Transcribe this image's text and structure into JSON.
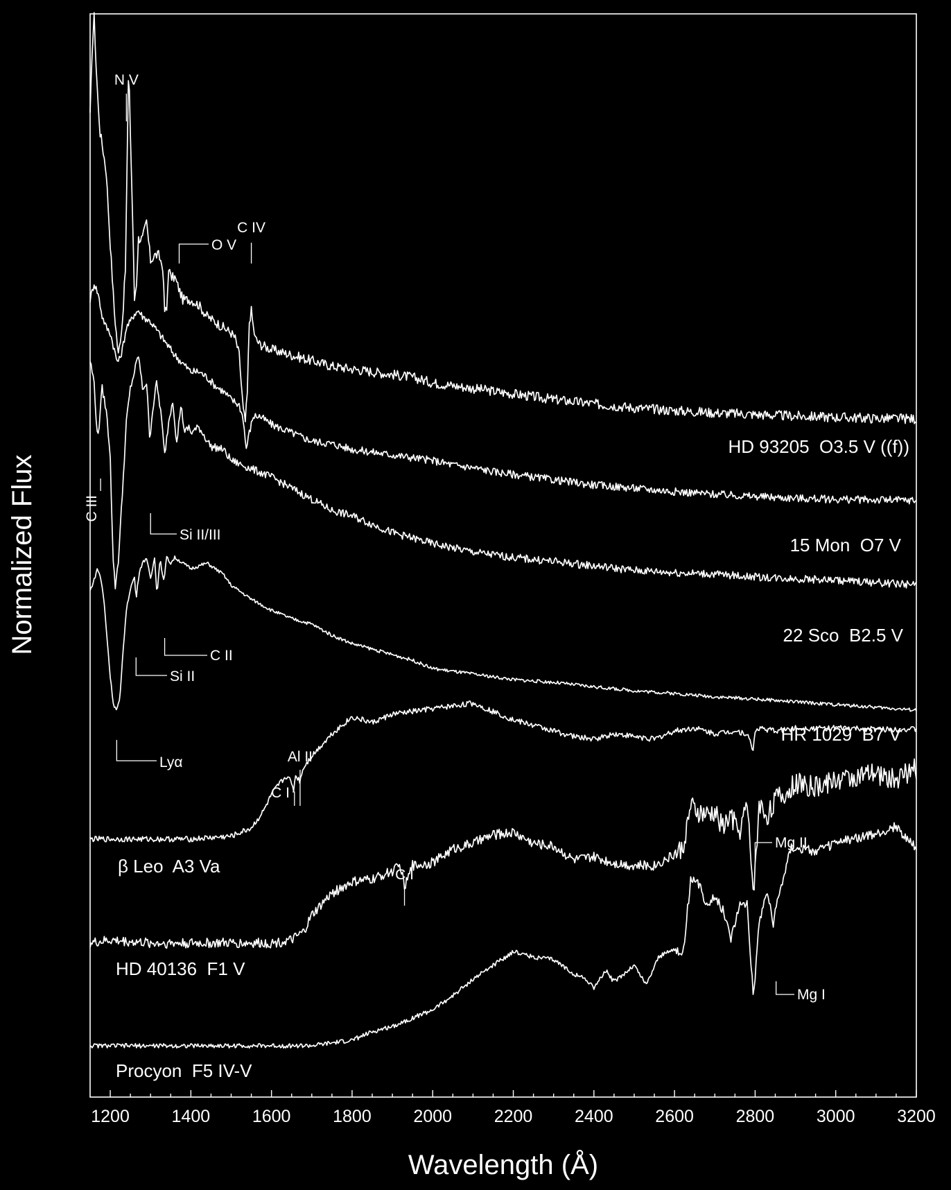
{
  "chart_data": {
    "type": "line",
    "xlabel": "Wavelength (Å)",
    "ylabel": "Normalized Flux",
    "xlim": [
      1150,
      3200
    ],
    "xticks": [
      1200,
      1400,
      1600,
      1800,
      2000,
      2200,
      2400,
      2600,
      2800,
      3000,
      3200
    ],
    "grid": false,
    "colors": {
      "background": "#000000",
      "foreground": "#ffffff"
    },
    "series": [
      {
        "name": "HD 93205  O3.5 V ((f))",
        "x": [
          1150,
          1155,
          1160,
          1165,
          1170,
          1175,
          1180,
          1190,
          1200,
          1210,
          1220,
          1230,
          1238,
          1242,
          1246,
          1250,
          1256,
          1260,
          1265,
          1270,
          1280,
          1290,
          1300,
          1310,
          1320,
          1330,
          1335,
          1340,
          1345,
          1350,
          1360,
          1370,
          1380,
          1400,
          1420,
          1440,
          1460,
          1480,
          1500,
          1510,
          1520,
          1530,
          1535,
          1540,
          1545,
          1550,
          1555,
          1560,
          1570,
          1600,
          1650,
          1700,
          1750,
          1800,
          1850,
          1900,
          1950,
          2000,
          2050,
          2100,
          2150,
          2200,
          2250,
          2300,
          2400,
          2500,
          2600,
          2700,
          2800,
          2900,
          3000,
          3100,
          3200
        ],
        "y": [
          12.9,
          14.1,
          14.7,
          13.8,
          13.1,
          12.6,
          12.4,
          11.9,
          10.6,
          9.4,
          8.6,
          9.2,
          10.2,
          12.2,
          13.9,
          12.6,
          10.9,
          9.6,
          9.9,
          10.7,
          10.7,
          11.0,
          10.3,
          10.4,
          10.4,
          10.2,
          9.4,
          9.4,
          10.2,
          10.0,
          10.0,
          9.8,
          9.6,
          9.6,
          9.5,
          9.3,
          9.2,
          9.1,
          9.0,
          8.9,
          8.6,
          7.6,
          7.4,
          7.9,
          9.2,
          9.4,
          9.1,
          8.9,
          8.8,
          8.7,
          8.6,
          8.5,
          8.4,
          8.35,
          8.3,
          8.25,
          8.2,
          8.1,
          8.05,
          8.0,
          7.95,
          7.9,
          7.85,
          7.8,
          7.72,
          7.65,
          7.6,
          7.56,
          7.53,
          7.5,
          7.48,
          7.46,
          7.45
        ],
        "label": "HD 93205  O3.5 V ((f))"
      },
      {
        "name": "15 Mon  O7 V",
        "x": [
          1150,
          1160,
          1170,
          1180,
          1190,
          1200,
          1210,
          1216,
          1222,
          1230,
          1240,
          1250,
          1260,
          1270,
          1280,
          1300,
          1320,
          1340,
          1360,
          1380,
          1400,
          1420,
          1440,
          1460,
          1480,
          1500,
          1520,
          1530,
          1537,
          1545,
          1555,
          1570,
          1600,
          1650,
          1700,
          1750,
          1800,
          1850,
          1900,
          1950,
          2000,
          2050,
          2100,
          2150,
          2200,
          2300,
          2400,
          2500,
          2600,
          2700,
          2800,
          2900,
          3000,
          3100,
          3200
        ],
        "y": [
          9.6,
          9.9,
          9.7,
          9.3,
          9.1,
          9.0,
          8.7,
          8.5,
          8.5,
          8.7,
          9.1,
          9.2,
          9.35,
          9.4,
          9.3,
          9.2,
          9.0,
          8.8,
          8.6,
          8.45,
          8.3,
          8.3,
          8.2,
          8.05,
          7.95,
          7.8,
          7.7,
          7.45,
          6.9,
          7.2,
          7.5,
          7.5,
          7.35,
          7.2,
          7.05,
          7.0,
          6.9,
          6.85,
          6.8,
          6.75,
          6.7,
          6.62,
          6.57,
          6.5,
          6.45,
          6.35,
          6.26,
          6.2,
          6.14,
          6.09,
          6.05,
          6.02,
          6.0,
          5.99,
          5.98
        ],
        "label": "15 Mon  O7 V"
      },
      {
        "name": "22 Sco  B2.5 V",
        "x": [
          1150,
          1160,
          1168,
          1172,
          1176,
          1180,
          1190,
          1200,
          1206,
          1212,
          1220,
          1230,
          1240,
          1250,
          1260,
          1270,
          1280,
          1290,
          1298,
          1305,
          1315,
          1325,
          1335,
          1345,
          1355,
          1365,
          1375,
          1385,
          1395,
          1400,
          1420,
          1450,
          1480,
          1500,
          1550,
          1600,
          1650,
          1700,
          1750,
          1800,
          1850,
          1900,
          1950,
          2000,
          2100,
          2200,
          2300,
          2400,
          2500,
          2600,
          2700,
          2800,
          2900,
          3000,
          3100,
          3200
        ],
        "y": [
          8.5,
          8.1,
          7.1,
          7.3,
          7.7,
          8.0,
          7.6,
          6.8,
          5.1,
          4.4,
          4.9,
          6.1,
          7.4,
          8.0,
          8.3,
          8.6,
          8.0,
          8.1,
          7.1,
          7.6,
          8.1,
          7.6,
          6.8,
          7.4,
          7.8,
          7.0,
          7.7,
          7.2,
          7.3,
          7.2,
          7.3,
          6.95,
          6.9,
          6.7,
          6.55,
          6.4,
          6.2,
          6.0,
          5.8,
          5.7,
          5.55,
          5.4,
          5.3,
          5.2,
          5.05,
          4.95,
          4.88,
          4.8,
          4.72,
          4.68,
          4.65,
          4.6,
          4.57,
          4.54,
          4.5,
          4.46
        ],
        "label": "22 Sco  B2.5 V"
      },
      {
        "name": "HR 1029  B7 V",
        "x": [
          1150,
          1160,
          1168,
          1176,
          1184,
          1192,
          1200,
          1208,
          1216,
          1224,
          1232,
          1240,
          1250,
          1260,
          1264,
          1272,
          1280,
          1290,
          1300,
          1310,
          1316,
          1324,
          1332,
          1340,
          1350,
          1360,
          1380,
          1400,
          1420,
          1440,
          1460,
          1480,
          1500,
          1550,
          1600,
          1650,
          1700,
          1750,
          1800,
          1850,
          1900,
          1950,
          2000,
          2100,
          2200,
          2300,
          2400,
          2500,
          2600,
          2700,
          2800,
          2900,
          3000,
          3100,
          3200
        ],
        "y": [
          4.35,
          4.55,
          4.75,
          4.6,
          4.2,
          3.5,
          2.8,
          2.3,
          2.2,
          2.4,
          3.3,
          4.0,
          4.4,
          4.6,
          4.2,
          4.7,
          4.85,
          4.95,
          4.55,
          4.95,
          4.3,
          4.95,
          4.5,
          4.95,
          4.85,
          4.95,
          4.85,
          4.75,
          4.8,
          4.85,
          4.75,
          4.65,
          4.45,
          4.2,
          4.0,
          3.85,
          3.75,
          3.55,
          3.4,
          3.3,
          3.2,
          3.1,
          2.95,
          2.85,
          2.75,
          2.7,
          2.62,
          2.55,
          2.5,
          2.44,
          2.4,
          2.35,
          2.3,
          2.25,
          2.2
        ],
        "label": "HR 1029  B7 V"
      },
      {
        "name": "β Leo  A3 Va",
        "x": [
          1150,
          1200,
          1300,
          1400,
          1500,
          1550,
          1580,
          1600,
          1620,
          1640,
          1655,
          1660,
          1670,
          1680,
          1700,
          1750,
          1800,
          1850,
          1900,
          1950,
          2000,
          2050,
          2100,
          2150,
          2200,
          2250,
          2300,
          2350,
          2400,
          2450,
          2500,
          2550,
          2600,
          2650,
          2700,
          2750,
          2780,
          2795,
          2800,
          2810,
          2850,
          2900,
          3000,
          3100,
          3200
        ],
        "y": [
          0.0,
          0.0,
          0.0,
          0.0,
          0.05,
          0.2,
          0.5,
          0.8,
          1.0,
          1.15,
          0.9,
          1.15,
          1.05,
          1.3,
          1.5,
          1.9,
          2.2,
          2.1,
          2.25,
          2.3,
          2.35,
          2.4,
          2.45,
          2.3,
          2.15,
          2.05,
          1.95,
          1.85,
          1.8,
          1.9,
          1.85,
          1.8,
          1.95,
          2.0,
          1.9,
          1.95,
          1.9,
          1.6,
          1.95,
          2.0,
          1.95,
          2.0,
          2.0,
          1.98,
          1.98
        ],
        "label": "β Leo  A3 Va"
      },
      {
        "name": "HD 40136  F1 V",
        "x": [
          1150,
          1200,
          1300,
          1400,
          1500,
          1550,
          1600,
          1650,
          1680,
          1700,
          1750,
          1800,
          1850,
          1900,
          1920,
          1930,
          1950,
          2000,
          2050,
          2100,
          2150,
          2200,
          2250,
          2300,
          2350,
          2400,
          2450,
          2500,
          2550,
          2600,
          2620,
          2640,
          2660,
          2680,
          2700,
          2720,
          2740,
          2760,
          2780,
          2795,
          2800,
          2810,
          2830,
          2850,
          2880,
          2900,
          2950,
          3000,
          3050,
          3100,
          3150,
          3200
        ],
        "y": [
          0.0,
          0.05,
          0.0,
          0.0,
          0.0,
          0.0,
          0.0,
          0.05,
          0.2,
          0.5,
          0.9,
          1.1,
          1.15,
          1.3,
          1.4,
          1.0,
          1.4,
          1.45,
          1.7,
          1.8,
          1.95,
          2.0,
          1.8,
          1.75,
          1.5,
          1.55,
          1.45,
          1.4,
          1.4,
          1.6,
          1.7,
          2.45,
          2.35,
          2.3,
          2.35,
          2.1,
          2.3,
          2.0,
          2.5,
          1.0,
          1.3,
          2.5,
          2.3,
          2.6,
          2.7,
          2.9,
          2.8,
          2.95,
          3.0,
          3.05,
          2.95,
          3.15
        ],
        "label": "HD 40136  F1 V"
      },
      {
        "name": "Procyon  F5 IV-V",
        "x": [
          1150,
          1300,
          1500,
          1700,
          1750,
          1800,
          1850,
          1900,
          1950,
          2000,
          2050,
          2100,
          2150,
          2200,
          2250,
          2300,
          2350,
          2380,
          2400,
          2430,
          2450,
          2500,
          2530,
          2560,
          2600,
          2620,
          2640,
          2660,
          2680,
          2700,
          2720,
          2740,
          2760,
          2780,
          2795,
          2800,
          2810,
          2830,
          2845,
          2855,
          2870,
          2890,
          2910,
          2950,
          3000,
          3050,
          3100,
          3150,
          3200
        ],
        "y": [
          0.0,
          0.0,
          0.0,
          0.0,
          0.05,
          0.1,
          0.25,
          0.35,
          0.5,
          0.65,
          0.9,
          1.2,
          1.45,
          1.7,
          1.6,
          1.55,
          1.3,
          1.2,
          1.05,
          1.35,
          1.15,
          1.45,
          1.1,
          1.6,
          1.75,
          1.6,
          3.0,
          2.9,
          2.55,
          2.7,
          2.45,
          1.95,
          2.5,
          2.6,
          0.95,
          1.2,
          2.25,
          2.8,
          2.2,
          2.6,
          3.05,
          3.6,
          3.55,
          3.5,
          3.65,
          3.75,
          3.8,
          3.95,
          3.55
        ],
        "label": "Procyon  F5 IV-V"
      }
    ],
    "annotations": [
      {
        "text": "N V",
        "series": 0,
        "x": 1240
      },
      {
        "text": "O V",
        "series": 0,
        "x": 1371
      },
      {
        "text": "C IV",
        "series": 0,
        "x": 1550
      },
      {
        "text": "C III",
        "series": 1,
        "x": 1176
      },
      {
        "text": "Si II/III",
        "series": 2,
        "x": 1300
      },
      {
        "text": "C II",
        "series": 3,
        "x": 1335
      },
      {
        "text": "Si II",
        "series": 3,
        "x": 1264
      },
      {
        "text": "Lyα",
        "series": 3,
        "x": 1216
      },
      {
        "text": "C I",
        "series": 4,
        "x": 1657
      },
      {
        "text": "Al II",
        "series": 4,
        "x": 1671
      },
      {
        "text": "Mg II",
        "series": 5,
        "x": 2800
      },
      {
        "text": "C I",
        "series": 5,
        "x": 1930
      },
      {
        "text": "Mg I",
        "series": 6,
        "x": 2852
      }
    ]
  }
}
